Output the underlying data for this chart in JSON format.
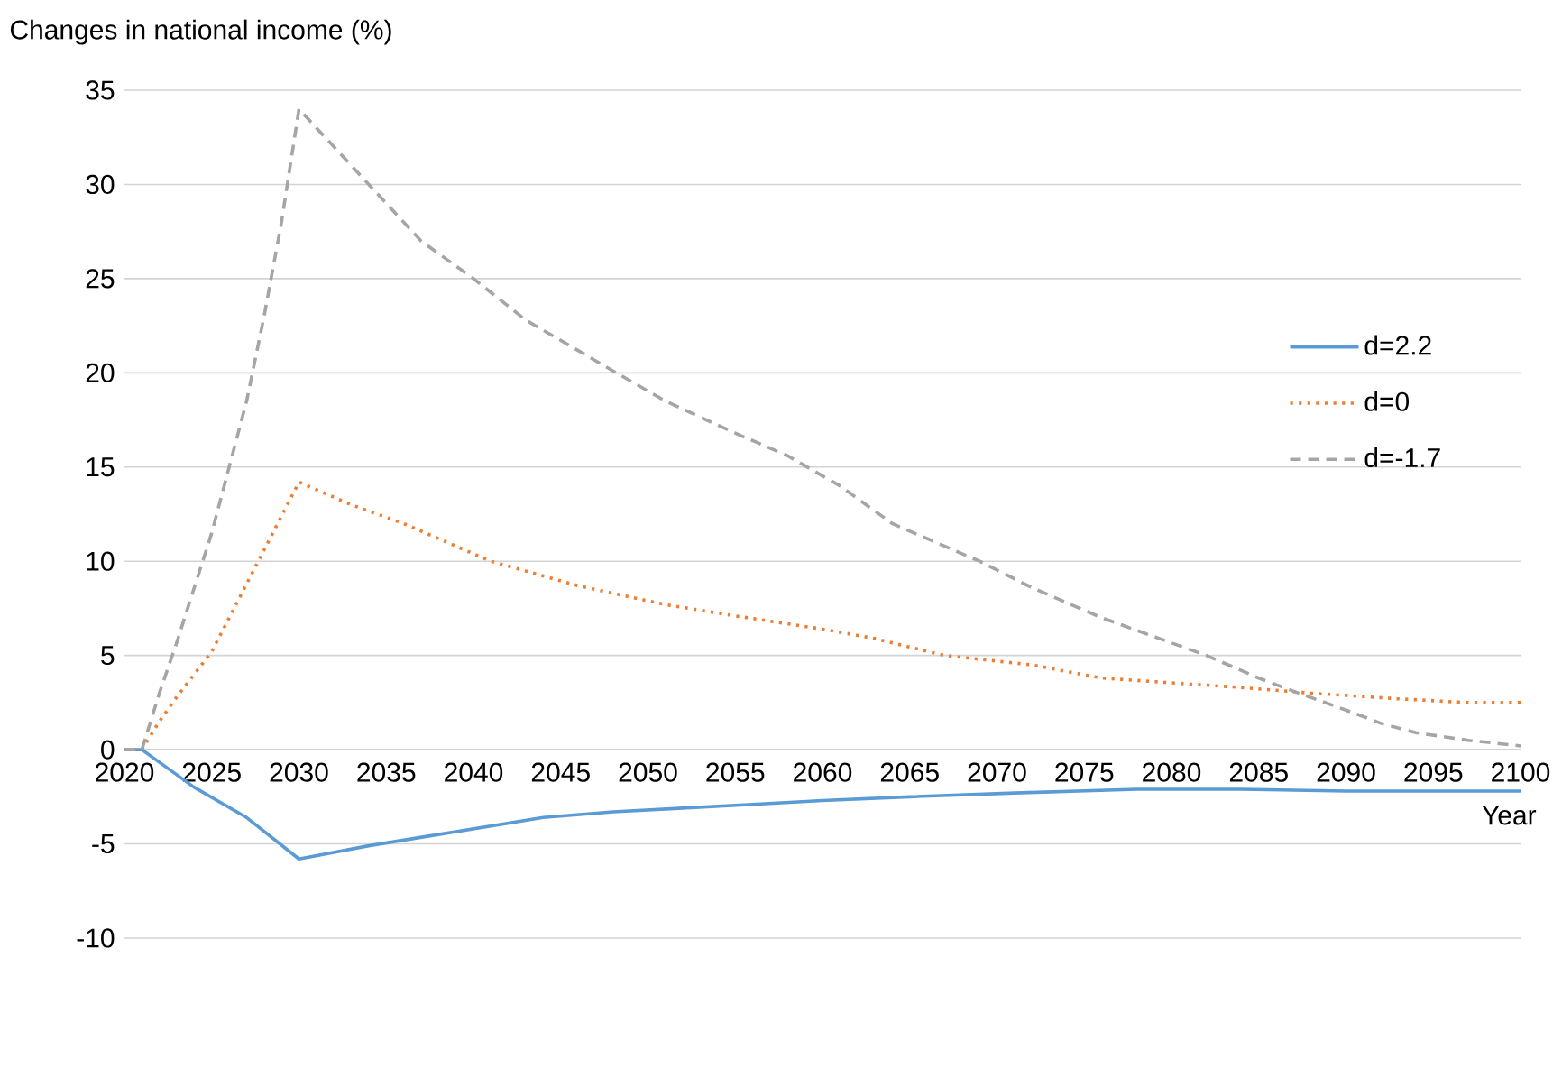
{
  "chart_data": {
    "type": "line",
    "ylabel": "Changes in national income (%)",
    "xlabel": "Year",
    "xlim": [
      2020,
      2100
    ],
    "xticks": [
      2020,
      2025,
      2030,
      2035,
      2040,
      2045,
      2050,
      2055,
      2060,
      2065,
      2070,
      2075,
      2080,
      2085,
      2090,
      2095,
      2100
    ],
    "ylim": [
      -10,
      35
    ],
    "yticks": [
      -10,
      -5,
      0,
      5,
      10,
      15,
      20,
      25,
      30,
      35
    ],
    "grid": "y",
    "legend": "right",
    "marker": "none",
    "series": [
      {
        "name": "d=2.2",
        "color": "#5b9bd5",
        "line_style": "solid",
        "x": [
          2020,
          2021,
          2024,
          2027,
          2030,
          2034,
          2038,
          2044,
          2048,
          2052,
          2056,
          2060,
          2065,
          2071,
          2078,
          2084,
          2090,
          2100
        ],
        "values": [
          0,
          0,
          -2.0,
          -3.6,
          -5.8,
          -5.1,
          -4.5,
          -3.6,
          -3.3,
          -3.1,
          -2.9,
          -2.7,
          -2.5,
          -2.3,
          -2.1,
          -2.1,
          -2.2,
          -2.2
        ]
      },
      {
        "name": "d=0",
        "color": "#ed7d31",
        "line_style": "dotted",
        "x": [
          2020,
          2021,
          2022,
          2023,
          2025,
          2027,
          2030,
          2033,
          2036,
          2041,
          2046,
          2051,
          2055,
          2060,
          2063,
          2067,
          2072,
          2076,
          2084,
          2088,
          2093,
          2097,
          2100
        ],
        "values": [
          0,
          0,
          1.5,
          2.8,
          5.2,
          8.8,
          14.2,
          13.0,
          12.0,
          10.0,
          8.7,
          7.7,
          7.1,
          6.4,
          5.9,
          5.0,
          4.5,
          3.8,
          3.3,
          3.0,
          2.7,
          2.5,
          2.5
        ]
      },
      {
        "name": "d=-1.7",
        "color": "#a5a5a5",
        "line_style": "dashed",
        "x": [
          2020,
          2021,
          2022,
          2023,
          2024,
          2025,
          2026,
          2027,
          2028,
          2029,
          2030,
          2034,
          2037,
          2040,
          2043,
          2048,
          2051,
          2055,
          2058,
          2061,
          2064,
          2069,
          2072,
          2076,
          2082,
          2085,
          2087,
          2090,
          2092,
          2094,
          2097,
          2100
        ],
        "values": [
          0,
          0,
          3.0,
          5.7,
          8.6,
          11.5,
          15.0,
          18.5,
          23.0,
          28.0,
          34.0,
          30.0,
          27.0,
          25.0,
          22.8,
          20.1,
          18.5,
          16.8,
          15.6,
          14.0,
          12.0,
          10.0,
          8.6,
          7.0,
          5.0,
          3.8,
          3.1,
          2.1,
          1.4,
          0.9,
          0.5,
          0.2
        ]
      }
    ]
  }
}
